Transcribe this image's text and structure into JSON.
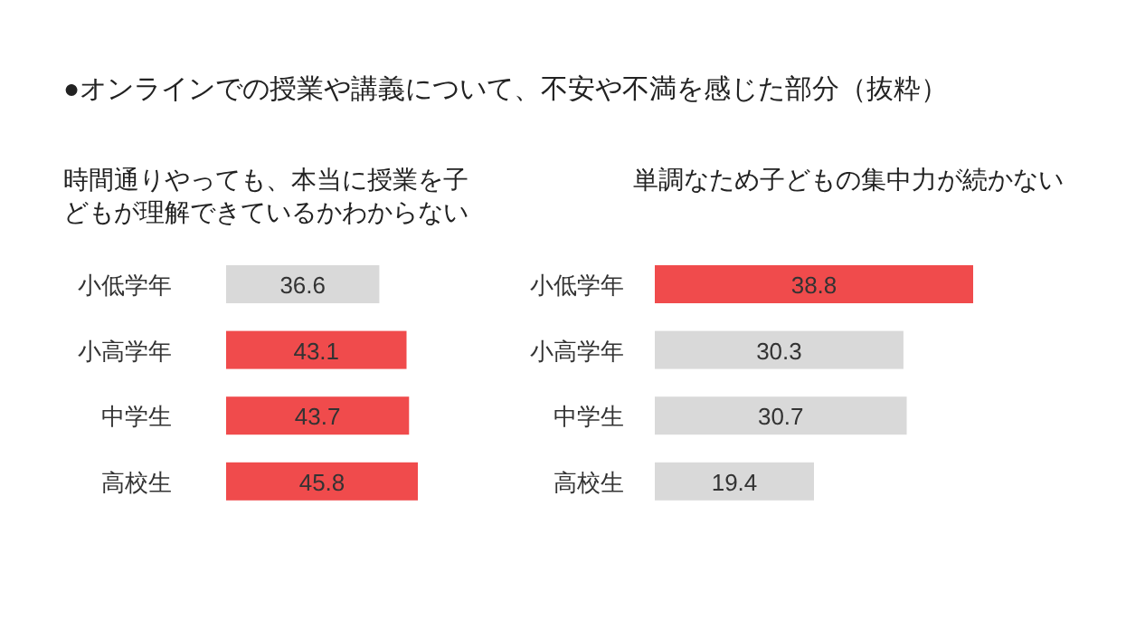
{
  "chart_data": [
    {
      "type": "bar",
      "orientation": "horizontal",
      "title": "●オンラインでの授業や講義について、不安や不満を感じた部分（抜粋）",
      "subtitle": "時間通りやっても、本当に授業を子どもが理解できているかわからない",
      "categories": [
        "小低学年",
        "小高学年",
        "中学生",
        "高校生"
      ],
      "values": [
        36.6,
        43.1,
        43.7,
        45.8
      ],
      "colors": [
        "#d9d9d9",
        "#f04b4c",
        "#f04b4c",
        "#f04b4c"
      ],
      "data_labels": true
    },
    {
      "type": "bar",
      "orientation": "horizontal",
      "subtitle": "単調なため子どもの集中力が続かない",
      "categories": [
        "小低学年",
        "小高学年",
        "中学生",
        "高校生"
      ],
      "values": [
        38.8,
        30.3,
        30.7,
        19.4
      ],
      "colors": [
        "#f04b4c",
        "#d9d9d9",
        "#d9d9d9",
        "#d9d9d9"
      ],
      "data_labels": true
    }
  ]
}
